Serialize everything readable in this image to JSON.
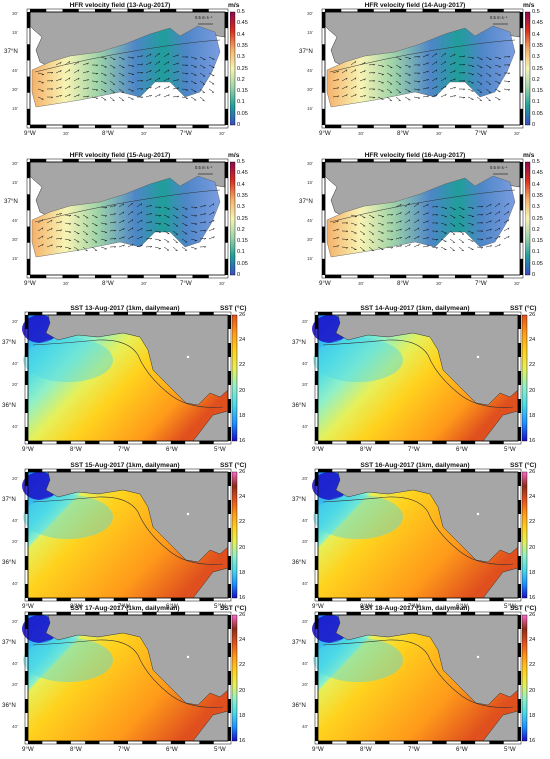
{
  "hfr": {
    "legend_label": "m/s",
    "ref_vector_label": "0.5 m s⁻¹",
    "lon_labels": [
      "9°W",
      "30'",
      "8°W",
      "30'",
      "7°W",
      "30'"
    ],
    "lat_labels": [
      "30'",
      "15'",
      "37°N",
      "45'",
      "30'",
      "15'"
    ],
    "colorbar_ticks": [
      "0.5",
      "0.45",
      "0.4",
      "0.35",
      "0.3",
      "0.25",
      "0.2",
      "0.15",
      "0.1",
      "0.05",
      "0"
    ],
    "colorbar_range": [
      0,
      0.5
    ],
    "colors": [
      "#3b4cc0",
      "#1f9e9a",
      "#9fd4a8",
      "#f7f4b4",
      "#f5b16a",
      "#d7301f",
      "#8b0a50"
    ],
    "panels": [
      {
        "title": "HFR velocity field (13-Aug-2017)"
      },
      {
        "title": "HFR velocity field (14-Aug-2017)"
      },
      {
        "title": "HFR velocity field (15-Aug-2017)"
      },
      {
        "title": "HFR velocity field (16-Aug-2017)"
      }
    ]
  },
  "sst": {
    "legend_label": "SST (°C)",
    "lon_labels": [
      "9°W",
      "8°W",
      "7°W",
      "6°W",
      "5°W"
    ],
    "lat_labels": [
      "20'",
      "37°N",
      "40'",
      "20'",
      "36°N",
      "40'"
    ],
    "colorbar_ticks": [
      "26",
      "24",
      "22",
      "20",
      "18",
      "16"
    ],
    "colorbar_range": [
      16,
      26
    ],
    "colors": [
      "#1a0dc8",
      "#1e90ff",
      "#4dd9e6",
      "#8ff0c8",
      "#e6f05a",
      "#ffd21e",
      "#ff9a1a",
      "#e0501e",
      "#8b2d1a",
      "#ff69c8"
    ],
    "land_color": "#a6a6a6",
    "panels": [
      {
        "title": "SST 13-Aug-2017 (1km, dailymean)"
      },
      {
        "title": "SST 14-Aug-2017 (1km, dailymean)"
      },
      {
        "title": "SST 15-Aug-2017 (1km, dailymean)"
      },
      {
        "title": "SST 16-Aug-2017 (1km, dailymean)"
      },
      {
        "title": "SST 17-Aug-2017 (1km, dailymean)"
      },
      {
        "title": "SST 18-Aug-2017 (1km, dailymean)"
      }
    ]
  }
}
